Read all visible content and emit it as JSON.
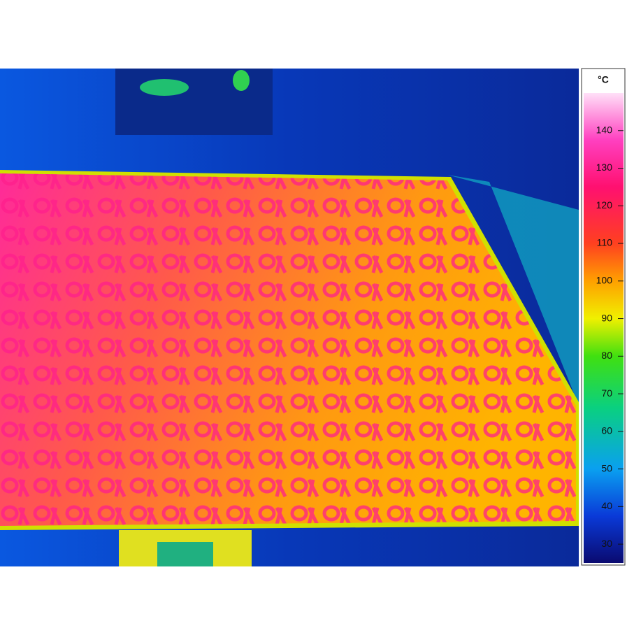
{
  "colorbar": {
    "unit": "°C",
    "range": [
      25,
      150
    ],
    "ticks": [
      30,
      40,
      50,
      60,
      70,
      80,
      90,
      100,
      110,
      120,
      130,
      140
    ]
  }
}
